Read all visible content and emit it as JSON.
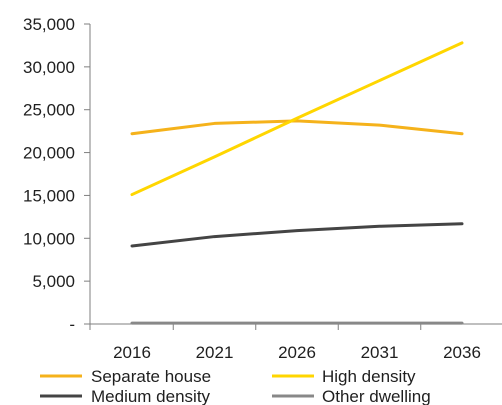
{
  "chart_data": {
    "type": "line",
    "title": "",
    "xlabel": "",
    "ylabel": "",
    "x": [
      "2016",
      "2021",
      "2026",
      "2031",
      "2036"
    ],
    "ylim": [
      0,
      35000
    ],
    "yticks": [
      0,
      5000,
      10000,
      15000,
      20000,
      25000,
      30000,
      35000
    ],
    "ytick_labels": [
      "-",
      "5,000",
      "10,000",
      "15,000",
      "20,000",
      "25,000",
      "30,000",
      "35,000"
    ],
    "grid": false,
    "legend_position": "bottom",
    "series": [
      {
        "name": "Separate house",
        "color": "#f5b21b",
        "values": [
          22200,
          23400,
          23700,
          23200,
          22200
        ]
      },
      {
        "name": "High density",
        "color": "#ffd600",
        "values": [
          15100,
          19500,
          24000,
          28400,
          32800
        ]
      },
      {
        "name": "Medium density",
        "color": "#444444",
        "values": [
          9100,
          10200,
          10900,
          11400,
          11700
        ]
      },
      {
        "name": "Other dwelling",
        "color": "#888888",
        "values": [
          100,
          100,
          100,
          100,
          100
        ]
      }
    ],
    "legend_order": [
      0,
      2,
      1,
      3
    ]
  }
}
